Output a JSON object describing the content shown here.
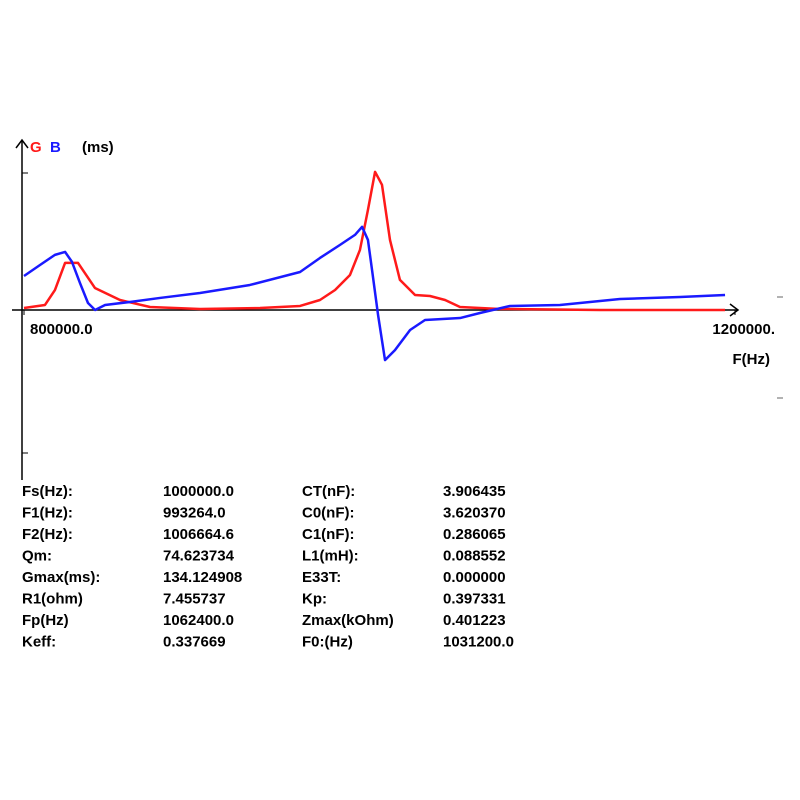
{
  "chart_data": {
    "type": "line",
    "y_label": "(ms)",
    "x_label": "F(Hz)",
    "xlim": [
      800000,
      1200000
    ],
    "xticks": [
      {
        "value": 800000,
        "label": "800000.0"
      },
      {
        "value": 1200000,
        "label": "1200000."
      }
    ],
    "ylim": [
      -165,
      165
    ],
    "series": [
      {
        "name": "G",
        "color": "#ff1a1a",
        "x": [
          800000,
          811800,
          817400,
          823100,
          830400,
          839900,
          854000,
          870900,
          899000,
          932800,
          955300,
          966500,
          975000,
          983400,
          989000,
          993500,
          997500,
          1001400,
          1005900,
          1011500,
          1020000,
          1028400,
          1036900,
          1045300,
          1067800,
          1124100,
          1194400
        ],
        "values": [
          1.9,
          4.9,
          19.4,
          45.7,
          45.7,
          21.4,
          9.7,
          2.9,
          1.0,
          1.9,
          3.9,
          9.7,
          19.4,
          34.0,
          58.3,
          97.2,
          134.1,
          121.5,
          68.0,
          29.2,
          14.6,
          13.6,
          9.7,
          2.9,
          1.0,
          0,
          0
        ]
      },
      {
        "name": "B",
        "color": "#1a1aff",
        "x": [
          800000,
          809000,
          817400,
          823100,
          827000,
          831500,
          836000,
          840000,
          845600,
          859600,
          876500,
          899000,
          927100,
          955300,
          966500,
          977800,
          986200,
          990200,
          993500,
          995800,
          999200,
          1003100,
          1008700,
          1017200,
          1025600,
          1045300,
          1056500,
          1073400,
          1101500,
          1135300,
          1169100,
          1194400
        ],
        "values": [
          33.0,
          43.7,
          53.5,
          56.4,
          46.7,
          26.2,
          6.8,
          0,
          4.9,
          7.8,
          11.7,
          16.5,
          24.3,
          36.9,
          50.5,
          63.2,
          72.9,
          80.7,
          68.0,
          38.9,
          -4.9,
          -48.6,
          -38.9,
          -19.4,
          -9.7,
          -7.8,
          -2.9,
          3.9,
          4.9,
          10.7,
          12.6,
          14.6
        ]
      }
    ]
  },
  "parameters": {
    "rows": [
      [
        "Fs(Hz):",
        "1000000.0",
        "CT(nF):",
        "3.906435"
      ],
      [
        "F1(Hz):",
        "993264.0",
        "C0(nF):",
        "3.620370"
      ],
      [
        "F2(Hz):",
        "1006664.6",
        "C1(nF):",
        "0.286065"
      ],
      [
        "Qm:",
        "74.623734",
        "L1(mH):",
        "0.088552"
      ],
      [
        "Gmax(ms):",
        "134.124908",
        "E33T:",
        "0.000000"
      ],
      [
        "R1(ohm)",
        "7.455737",
        "Kp:",
        "0.397331"
      ],
      [
        "Fp(Hz)",
        "1062400.0",
        "Zmax(kOhm)",
        "0.401223"
      ],
      [
        "Keff:",
        "0.337669",
        "F0:(Hz)",
        "1031200.0"
      ]
    ]
  }
}
